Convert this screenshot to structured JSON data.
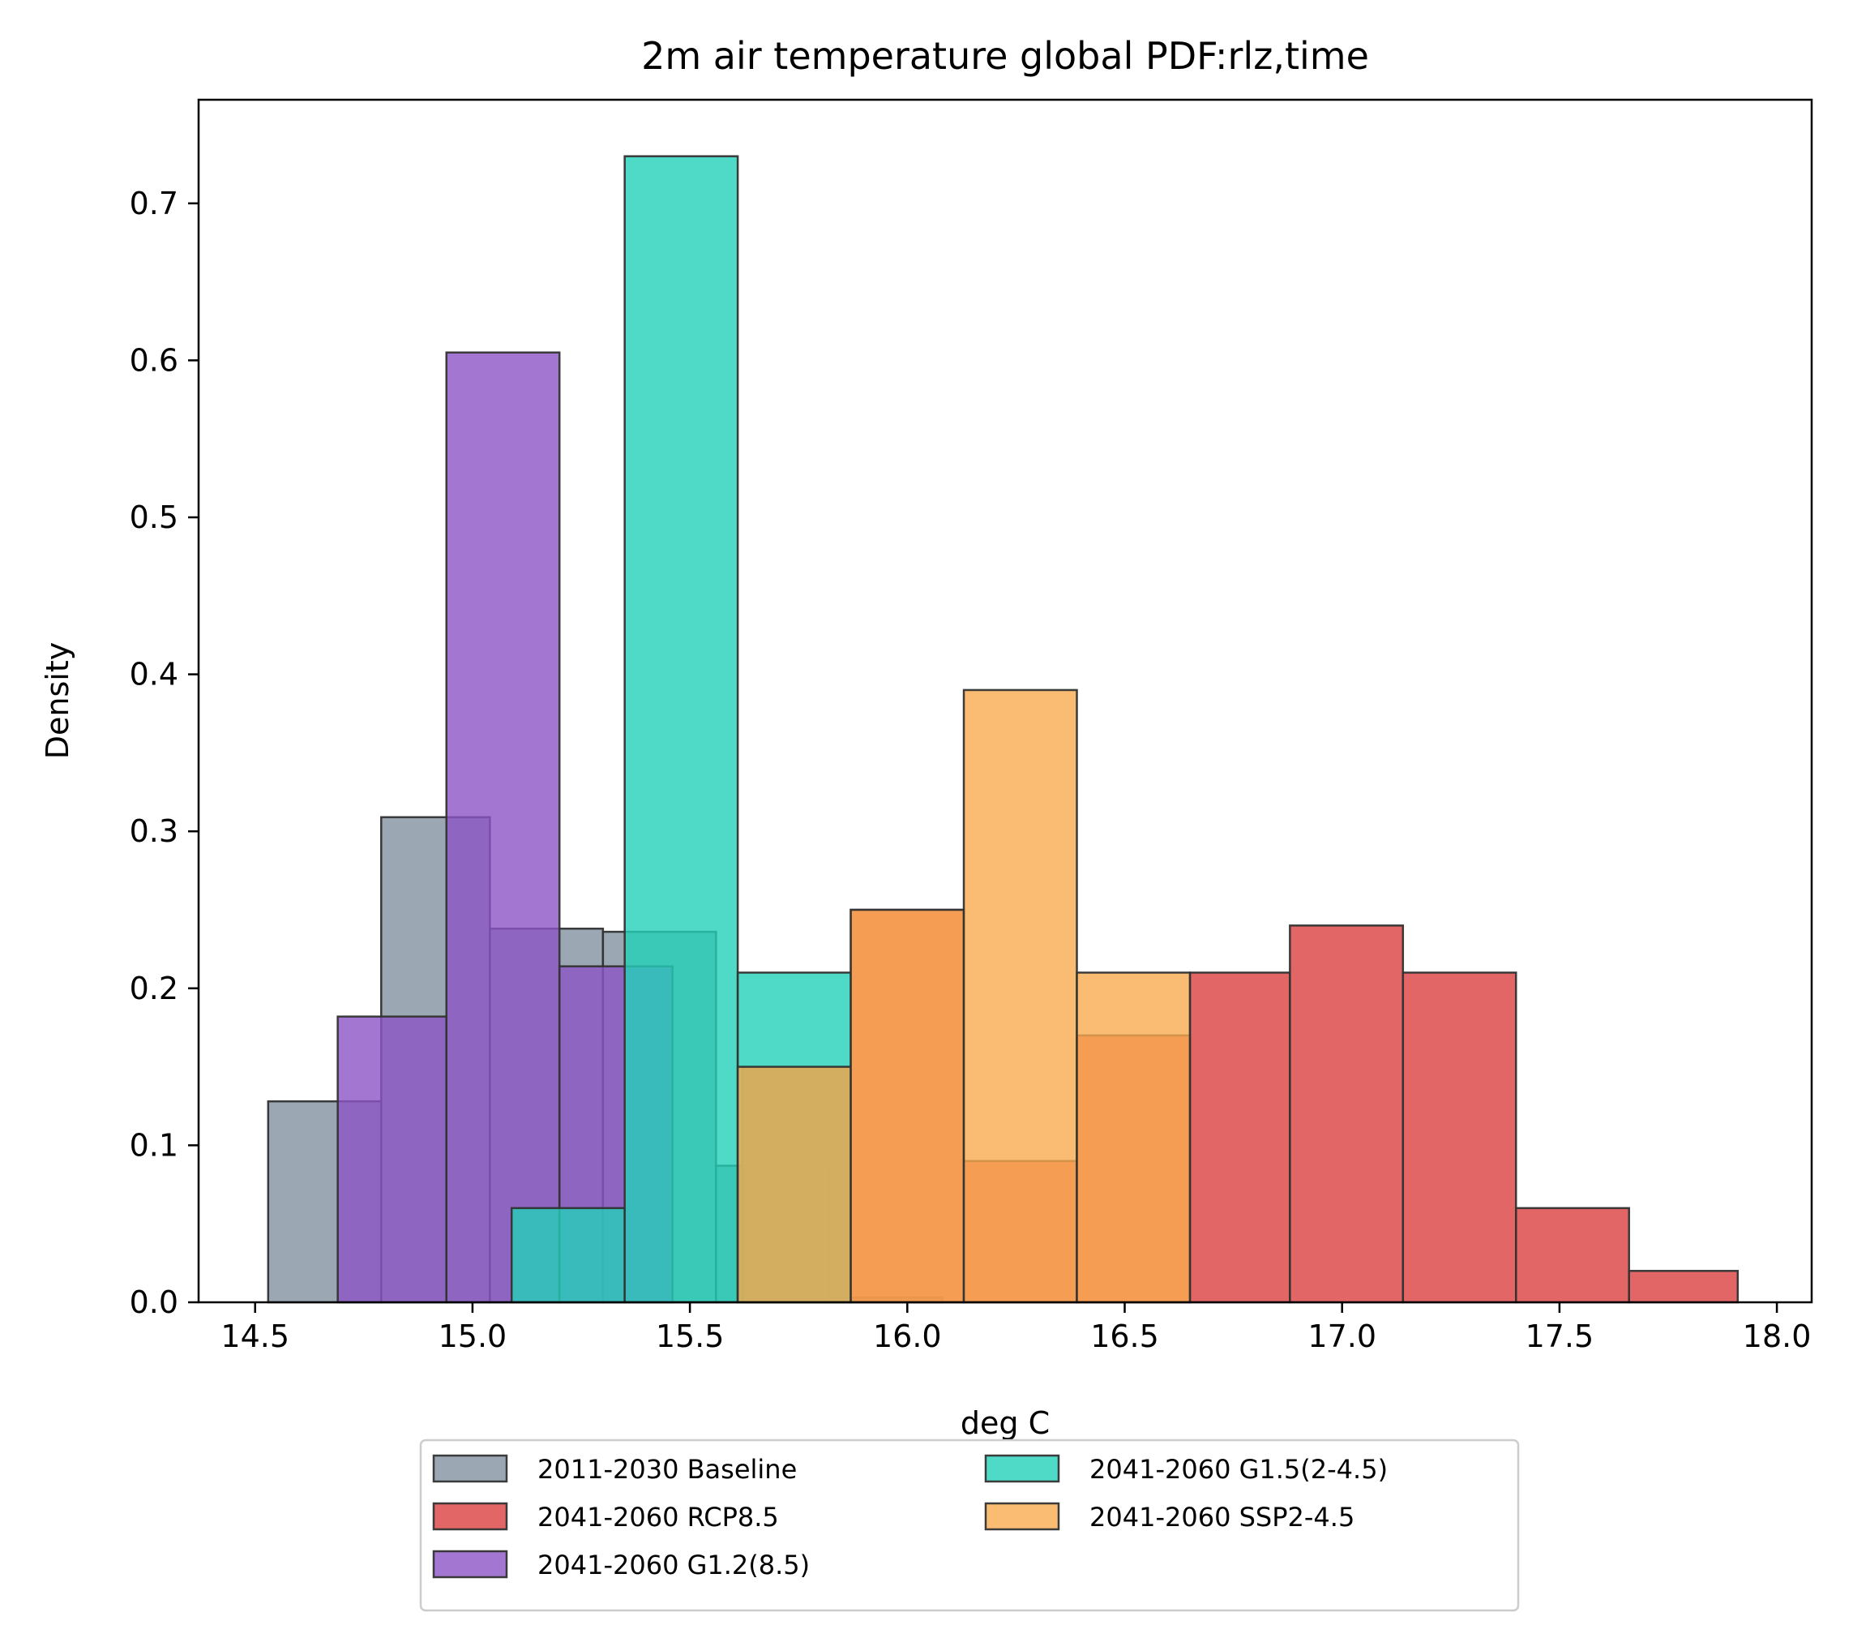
{
  "chart_data": {
    "type": "bar",
    "title": "2m air temperature  global PDF:rlz,time",
    "xlabel": "deg C",
    "ylabel": "Density",
    "xlim": [
      14.37,
      18.08
    ],
    "ylim": [
      0,
      0.766
    ],
    "xticks": [
      14.5,
      15.0,
      15.5,
      16.0,
      16.5,
      17.0,
      17.5,
      18.0
    ],
    "xtick_labels": [
      "14.5",
      "15.0",
      "15.5",
      "16.0",
      "16.5",
      "17.0",
      "17.5",
      "18.0"
    ],
    "yticks": [
      0.0,
      0.1,
      0.2,
      0.3,
      0.4,
      0.5,
      0.6,
      0.7
    ],
    "ytick_labels": [
      "0.0",
      "0.1",
      "0.2",
      "0.3",
      "0.4",
      "0.5",
      "0.6",
      "0.7"
    ],
    "grid": false,
    "legend_position": "below-center",
    "legend_columns": 2,
    "series": [
      {
        "name": "2011-2030 Baseline",
        "color": "#8391a1",
        "bins": [
          {
            "x0": 14.53,
            "x1": 14.79,
            "y": 0.128
          },
          {
            "x0": 14.79,
            "x1": 15.04,
            "y": 0.309
          },
          {
            "x0": 15.04,
            "x1": 15.3,
            "y": 0.238
          },
          {
            "x0": 15.3,
            "x1": 15.56,
            "y": 0.236
          },
          {
            "x0": 15.56,
            "x1": 15.82,
            "y": 0.087
          },
          {
            "x0": 15.82,
            "x1": 16.08,
            "y": 0.003
          }
        ]
      },
      {
        "name": "2041-2060 RCP8.5",
        "color": "#dc4040",
        "bins": [
          {
            "x0": 15.62,
            "x1": 15.87,
            "y": 0.15
          },
          {
            "x0": 15.87,
            "x1": 16.13,
            "y": 0.25
          },
          {
            "x0": 16.13,
            "x1": 16.39,
            "y": 0.09
          },
          {
            "x0": 16.39,
            "x1": 16.65,
            "y": 0.17
          },
          {
            "x0": 16.65,
            "x1": 16.88,
            "y": 0.21
          },
          {
            "x0": 16.88,
            "x1": 17.14,
            "y": 0.24
          },
          {
            "x0": 17.14,
            "x1": 17.4,
            "y": 0.21
          },
          {
            "x0": 17.4,
            "x1": 17.66,
            "y": 0.06
          },
          {
            "x0": 17.66,
            "x1": 17.91,
            "y": 0.02
          }
        ]
      },
      {
        "name": "2041-2060 G1.2(8.5)",
        "color": "#8c55c6",
        "bins": [
          {
            "x0": 14.69,
            "x1": 14.94,
            "y": 0.182
          },
          {
            "x0": 14.94,
            "x1": 15.2,
            "y": 0.605
          },
          {
            "x0": 15.2,
            "x1": 15.46,
            "y": 0.214
          }
        ]
      },
      {
        "name": "2041-2060 G1.5(2-4.5)",
        "color": "#22d1b8",
        "bins": [
          {
            "x0": 15.09,
            "x1": 15.35,
            "y": 0.06
          },
          {
            "x0": 15.35,
            "x1": 15.61,
            "y": 0.73
          },
          {
            "x0": 15.61,
            "x1": 15.87,
            "y": 0.21
          }
        ]
      },
      {
        "name": "2041-2060 SSP2-4.5",
        "color": "#f7ab4f",
        "bins": [
          {
            "x0": 15.61,
            "x1": 15.87,
            "y": 0.15
          },
          {
            "x0": 15.87,
            "x1": 16.13,
            "y": 0.25
          },
          {
            "x0": 16.13,
            "x1": 16.39,
            "y": 0.39
          },
          {
            "x0": 16.39,
            "x1": 16.65,
            "y": 0.21
          }
        ]
      }
    ]
  }
}
